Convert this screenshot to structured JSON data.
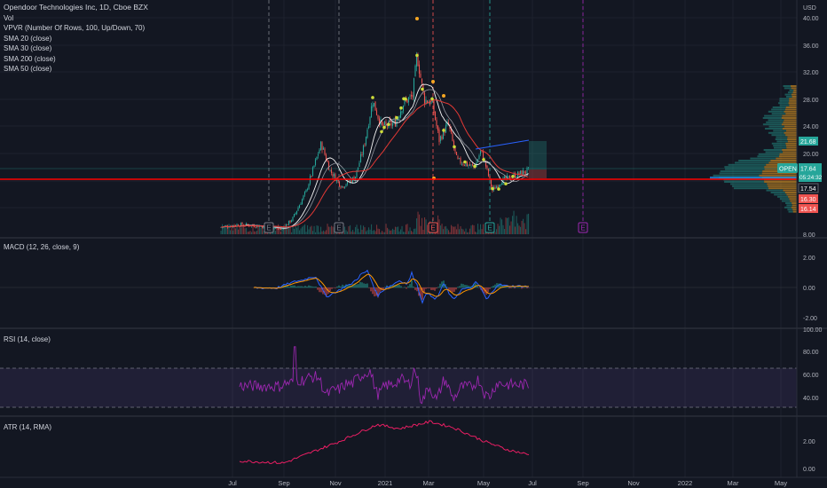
{
  "symbol": {
    "title": "Opendoor Technologies Inc, 1D, Cboe BZX",
    "ticker": "OPEN",
    "currency": "USD",
    "price_badge": "17.64",
    "countdown_badge": "05:24:32"
  },
  "legend": {
    "main": [
      "Vol",
      "VPVR (Number Of Rows, 100, Up/Down, 70)",
      "SMA 20 (close)",
      "SMA 30 (close)",
      "SMA 200 (close)",
      "SMA 50 (close)"
    ],
    "macd": "MACD (12, 26, close, 9)",
    "rsi": "RSI (14, close)",
    "atr": "ATR (14, RMA)"
  },
  "price_axis": {
    "labels": [
      "40.00",
      "36.00",
      "32.00",
      "28.00",
      "24.00",
      "20.00",
      "8.00"
    ],
    "badges": [
      {
        "text": "21.68",
        "color": "#26a69a"
      },
      {
        "text": "17.54",
        "color": "#131722"
      },
      {
        "text": "16.30",
        "color": "#ef5350"
      },
      {
        "text": "16.14",
        "color": "#ef5350"
      }
    ]
  },
  "macd_axis": [
    "2.00",
    "0.00",
    "-2.00"
  ],
  "rsi_axis": [
    "100.00",
    "80.00",
    "60.00",
    "40.00"
  ],
  "atr_axis": [
    "2.00",
    "0.00"
  ],
  "time_axis": [
    "Jul",
    "Sep",
    "Nov",
    "2021",
    "Mar",
    "May",
    "Jul",
    "Sep",
    "Nov",
    "2022",
    "Mar",
    "May"
  ],
  "earnings_markers": [
    "E",
    "E",
    "E",
    "E",
    "E"
  ],
  "colors": {
    "background": "#131722",
    "up": "#26a69a",
    "down": "#ef5350",
    "sma20": "#f7f7f7",
    "sma50": "#e53935",
    "macd_line": "#2962ff",
    "signal_line": "#ff9800",
    "rsi_line": "#9c27b0",
    "atr_line": "#e91e63",
    "horizontal_line": "#ff0000"
  }
}
